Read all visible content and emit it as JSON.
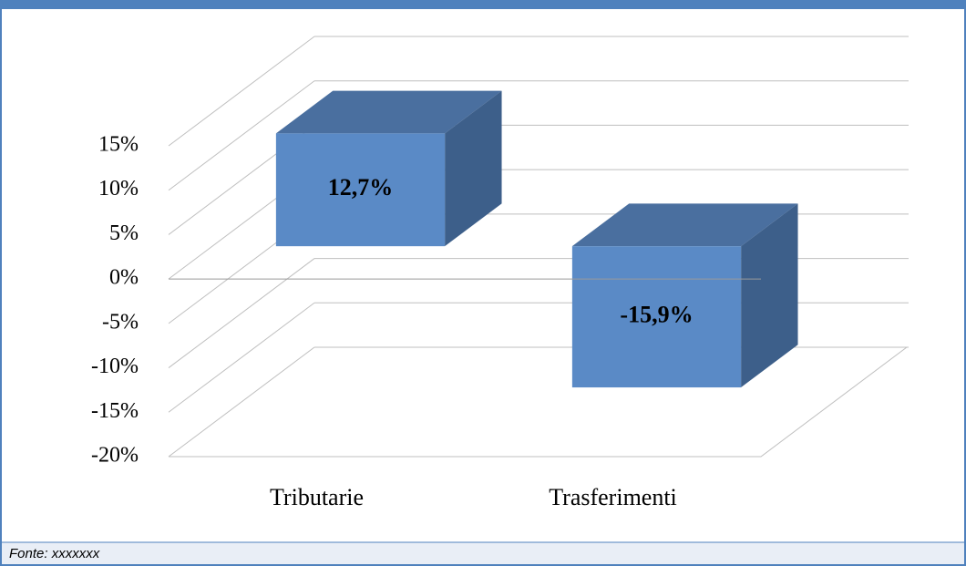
{
  "chart_data": {
    "type": "bar3d",
    "categories": [
      "Tributarie",
      "Trasferimenti"
    ],
    "values": [
      12.7,
      -15.9
    ],
    "value_labels": [
      "12,7%",
      "-15,9%"
    ],
    "color": "#5a8ac6",
    "ylim": [
      -20,
      15
    ],
    "yticks": [
      {
        "value": -20,
        "label": "-20%"
      },
      {
        "value": -15,
        "label": "-15%"
      },
      {
        "value": -10,
        "label": "-10%"
      },
      {
        "value": -5,
        "label": "-5%"
      },
      {
        "value": 0,
        "label": "0%"
      },
      {
        "value": 5,
        "label": "5%"
      },
      {
        "value": 10,
        "label": "10%"
      },
      {
        "value": 15,
        "label": "15%"
      }
    ],
    "grid": true
  },
  "footer": {
    "text": "Fonte: xxxxxxx"
  }
}
